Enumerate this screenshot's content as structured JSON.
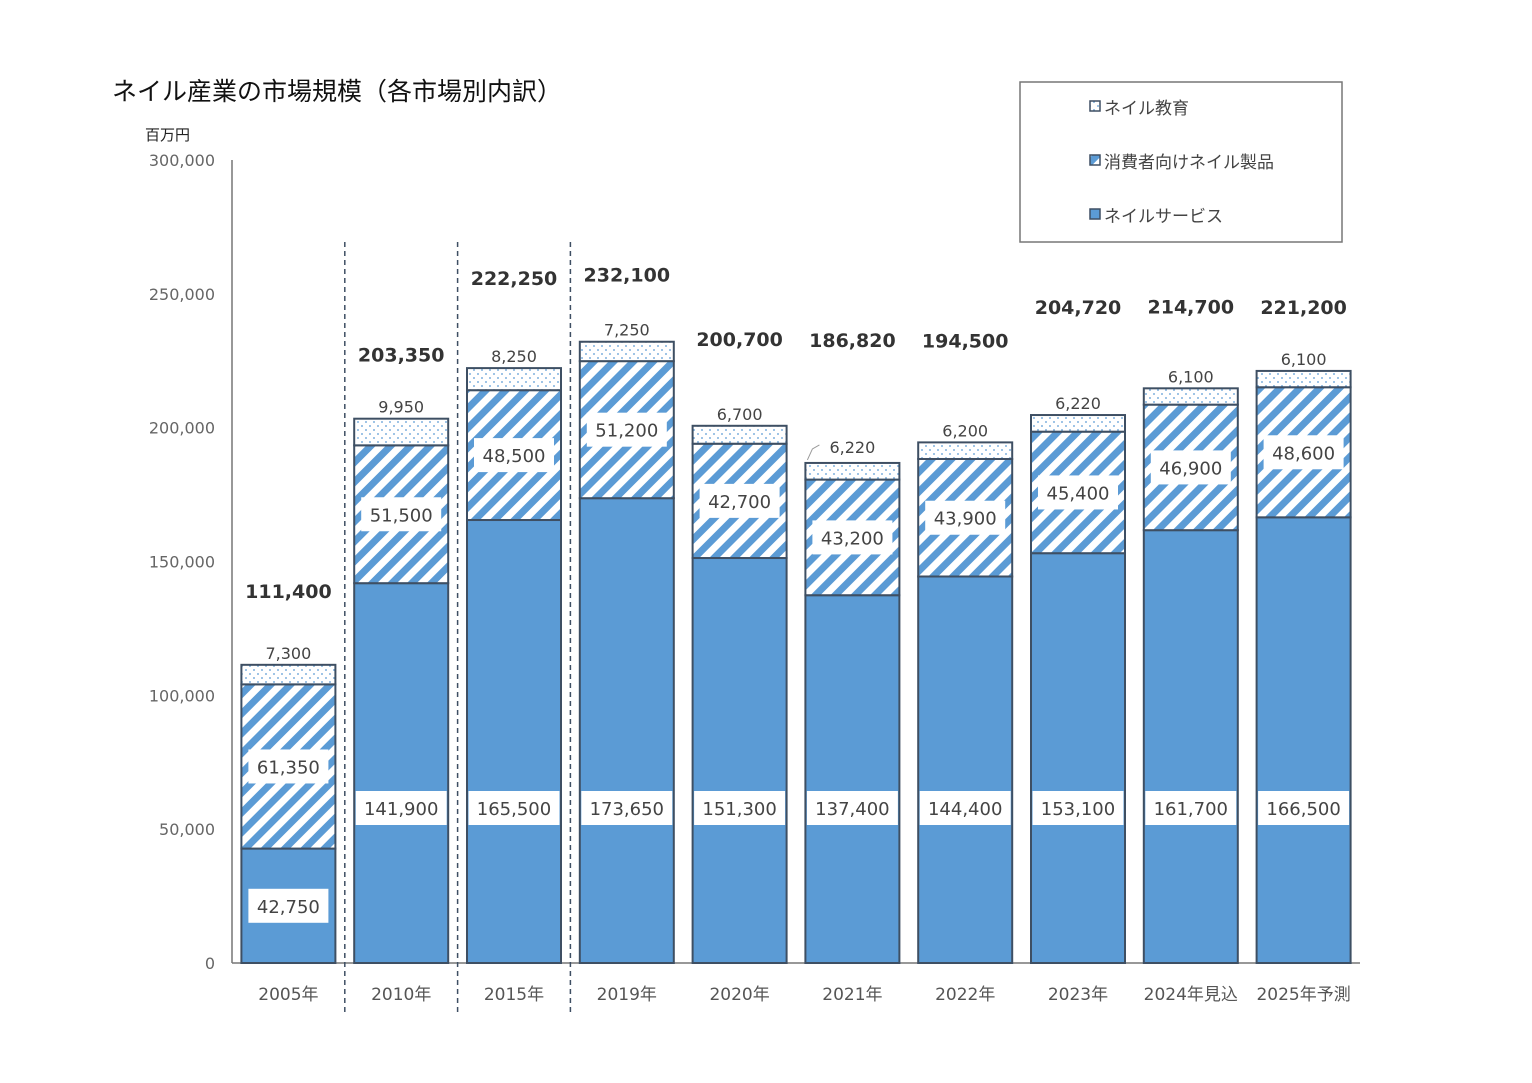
{
  "chart_data": {
    "type": "bar",
    "stacked": true,
    "title": "ネイル産業の市場規模（各市場別内訳）",
    "ylabel": "百万円",
    "xlabel": "",
    "ylim": [
      0,
      300000
    ],
    "yticks": [
      "0",
      "50,000",
      "100,000",
      "150,000",
      "200,000",
      "250,000",
      "300,000"
    ],
    "grid": false,
    "legend_position": "top-right",
    "categories": [
      "2005年",
      "2010年",
      "2015年",
      "2019年",
      "2020年",
      "2021年",
      "2022年",
      "2023年",
      "2024年見込",
      "2025年予測"
    ],
    "series": [
      {
        "name": "ネイルサービス",
        "color": "#5B9BD5",
        "pattern": "solid",
        "values": [
          42750,
          141900,
          165500,
          173650,
          151300,
          137400,
          144400,
          153100,
          161700,
          166500
        ],
        "labels": [
          "42,750",
          "141,900",
          "165,500",
          "173,650",
          "151,300",
          "137,400",
          "144,400",
          "153,100",
          "161,700",
          "166,500"
        ]
      },
      {
        "name": "消費者向けネイル製品",
        "color": "#5B9BD5",
        "pattern": "diagonal-hatch",
        "values": [
          61350,
          51500,
          48500,
          51200,
          42700,
          43200,
          43900,
          45400,
          46900,
          48600
        ],
        "labels": [
          "61,350",
          "51,500",
          "48,500",
          "51,200",
          "42,700",
          "43,200",
          "43,900",
          "45,400",
          "46,900",
          "48,600"
        ]
      },
      {
        "name": "ネイル教育",
        "color": "#5B9BD5",
        "pattern": "dotted",
        "values": [
          7300,
          9950,
          8250,
          7250,
          6700,
          6220,
          6200,
          6220,
          6100,
          6100
        ],
        "labels": [
          "7,300",
          "9,950",
          "8,250",
          "7,250",
          "6,700",
          "6,220",
          "6,200",
          "6,220",
          "6,100",
          "6,100"
        ]
      }
    ],
    "totals": [
      111400,
      203350,
      222250,
      232100,
      200700,
      186820,
      194500,
      204720,
      214700,
      221200
    ],
    "total_labels": [
      "111,400",
      "203,350",
      "222,250",
      "232,100",
      "200,700",
      "186,820",
      "194,500",
      "204,720",
      "214,700",
      "221,200"
    ],
    "legend": [
      "ネイル教育",
      "消費者向けネイル製品",
      "ネイルサービス"
    ],
    "separators_after": [
      "2005年",
      "2010年",
      "2015年"
    ],
    "border_color": "#3E4F63"
  }
}
